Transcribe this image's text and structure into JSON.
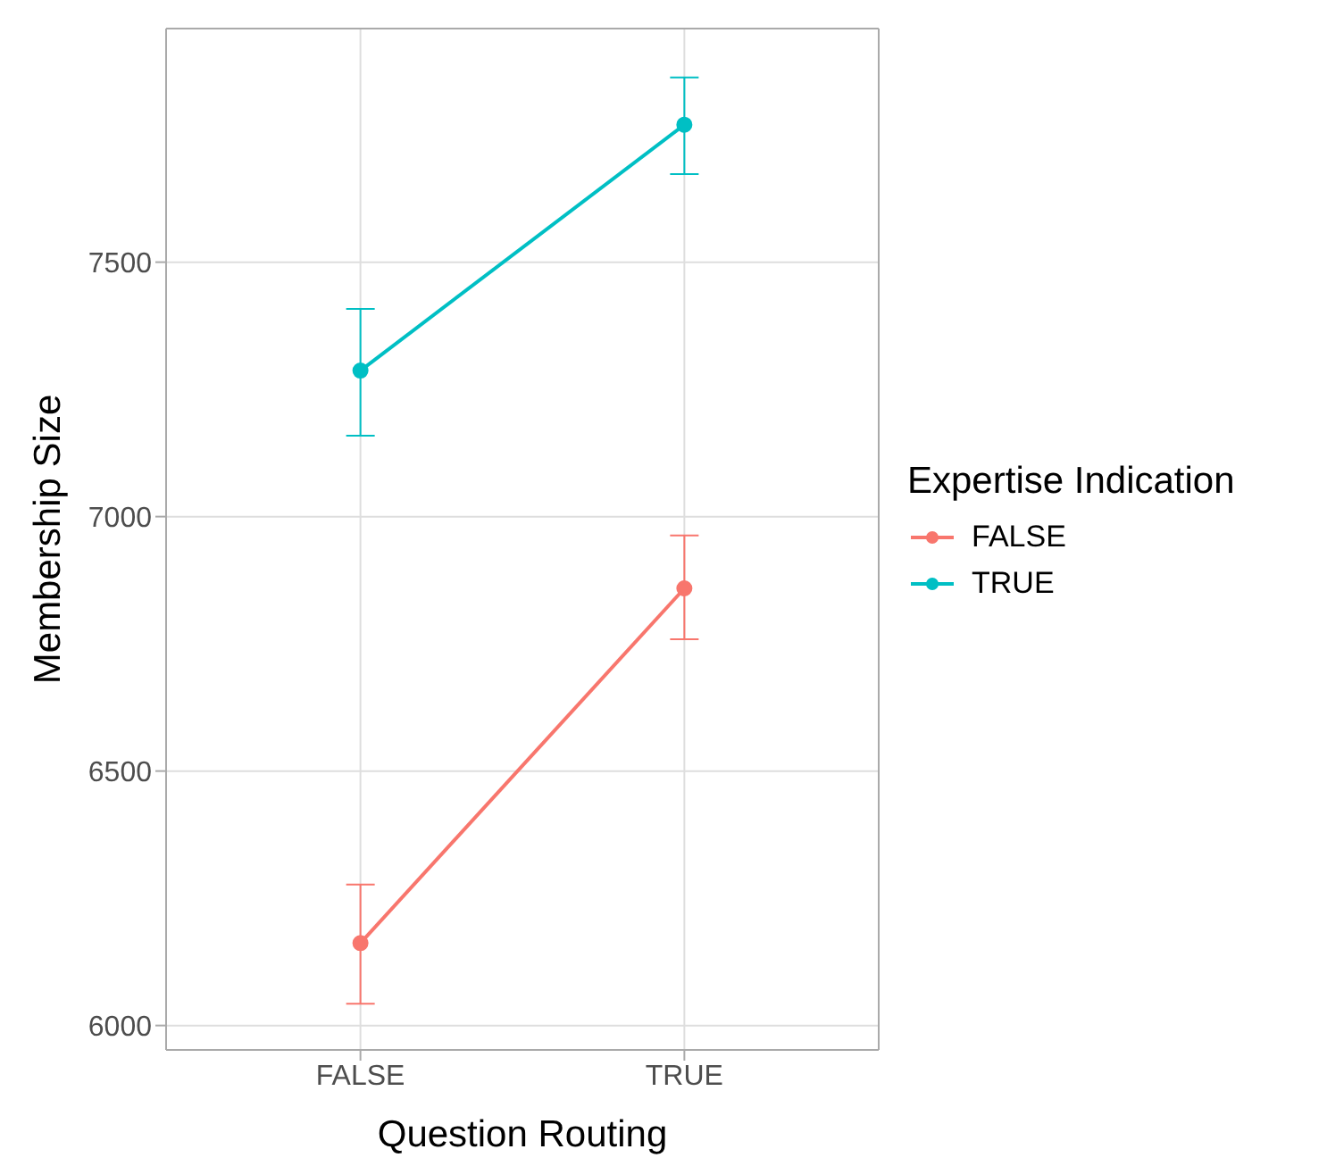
{
  "chart_data": {
    "type": "line",
    "xlabel": "Question Routing",
    "ylabel": "Membership Size",
    "legend_title": "Expertise Indication",
    "categories": [
      "FALSE",
      "TRUE"
    ],
    "series": [
      {
        "name": "FALSE",
        "color": "#f8766d",
        "values": [
          6162,
          6859
        ],
        "errors": [
          [
            6043,
            6277
          ],
          [
            6759,
            6963
          ]
        ]
      },
      {
        "name": "TRUE",
        "color": "#00bfc4",
        "values": [
          7287,
          7770
        ],
        "errors": [
          [
            7159,
            7408
          ],
          [
            7673,
            7863
          ]
        ]
      }
    ],
    "ylim": [
      5952,
      7959
    ],
    "yticks": [
      6000,
      6500,
      7000,
      7500
    ],
    "grid": true,
    "legend": "right",
    "marker": "circle",
    "line_style": "solid"
  }
}
